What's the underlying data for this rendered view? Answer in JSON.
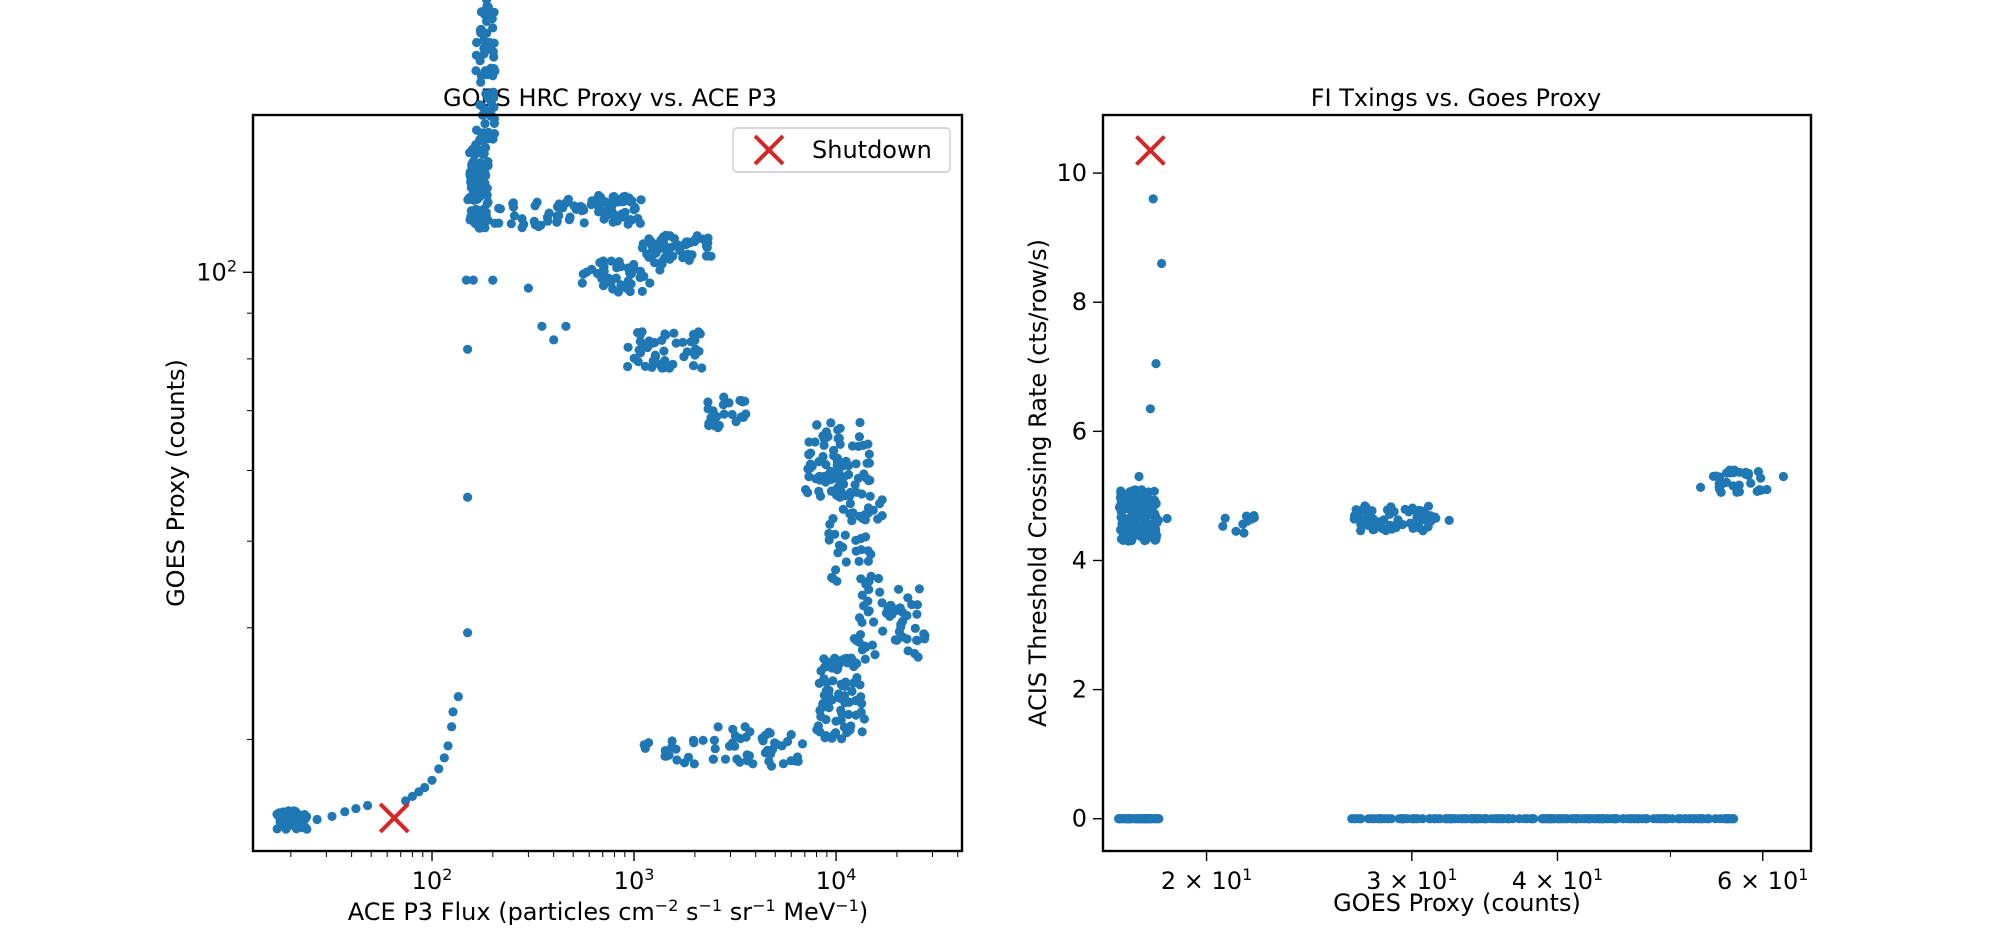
{
  "chart_data": [
    {
      "type": "scatter",
      "title": "GOES HRC Proxy vs. ACE P3",
      "xlabel": "ACE P3 Flux (particles cm",
      "xlabel_parts": {
        "p1": "ACE P3 Flux (particles cm",
        "e1": "−2",
        "p2": " s",
        "e2": "−1",
        "p3": " sr",
        "e3": "−1",
        "p4": " MeV",
        "e4": "−1",
        "p5": ")"
      },
      "ylabel": "GOES Proxy (counts)",
      "xscale": "log",
      "yscale": "log",
      "xlim": [
        13,
        42000
      ],
      "ylim": [
        22.5,
        150
      ],
      "xticks": [
        {
          "value": 100,
          "base": "10",
          "exp": "2"
        },
        {
          "value": 1000,
          "base": "10",
          "exp": "3"
        },
        {
          "value": 10000,
          "base": "10",
          "exp": "4"
        }
      ],
      "yticks": [
        {
          "value": 100,
          "base": "10",
          "exp": "2"
        }
      ],
      "legend": {
        "position": "top-right",
        "entries": [
          "Shutdown"
        ]
      },
      "series": [
        {
          "role": "data",
          "color": "#1f77b4",
          "clusters": [
            {
              "x": [
                17,
                24
              ],
              "y": [
                23.8,
                25.0
              ],
              "n": 60
            },
            {
              "x": [
                150,
                190
              ],
              "y": [
                112,
                140
              ],
              "n": 95
            },
            {
              "x": [
                165,
                205
              ],
              "y": [
                140,
                210
              ],
              "n": 80
            },
            {
              "x": [
                200,
                420
              ],
              "y": [
                112,
                120
              ],
              "n": 25
            },
            {
              "x": [
                420,
                1100
              ],
              "y": [
                113,
                122
              ],
              "n": 60
            },
            {
              "x": [
                1100,
                2500
              ],
              "y": [
                103,
                110
              ],
              "n": 55
            },
            {
              "x": [
                550,
                1400
              ],
              "y": [
                95,
                103
              ],
              "n": 40
            },
            {
              "x": [
                900,
                2200
              ],
              "y": [
                78,
                86
              ],
              "n": 45
            },
            {
              "x": [
                2300,
                3600
              ],
              "y": [
                67,
                73
              ],
              "n": 25
            },
            {
              "x": [
                7000,
                15000
              ],
              "y": [
                56,
                68
              ],
              "n": 85
            },
            {
              "x": [
                9000,
                17000
              ],
              "y": [
                45,
                56
              ],
              "n": 45
            },
            {
              "x": [
                12000,
                28000
              ],
              "y": [
                37,
                45
              ],
              "n": 55
            },
            {
              "x": [
                8000,
                14000
              ],
              "y": [
                30,
                37
              ],
              "n": 80
            },
            {
              "x": [
                2500,
                7000
              ],
              "y": [
                28,
                31
              ],
              "n": 40
            },
            {
              "x": [
                1000,
                2500
              ],
              "y": [
                28,
                30
              ],
              "n": 20
            }
          ],
          "points": [
            [
              27,
              24.4
            ],
            [
              32,
              24.6
            ],
            [
              37,
              24.9
            ],
            [
              42,
              25.1
            ],
            [
              48,
              25.3
            ],
            [
              74,
              25.6
            ],
            [
              80,
              25.9
            ],
            [
              86,
              26.2
            ],
            [
              92,
              26.5
            ],
            [
              100,
              27.0
            ],
            [
              108,
              27.8
            ],
            [
              115,
              28.6
            ],
            [
              120,
              29.5
            ],
            [
              125,
              31.0
            ],
            [
              127,
              32.2
            ],
            [
              135,
              33.5
            ],
            [
              150,
              39.5
            ],
            [
              150,
              56
            ],
            [
              150,
              82
            ],
            [
              148,
              98
            ],
            [
              160,
              98
            ],
            [
              200,
              98
            ],
            [
              300,
              96
            ],
            [
              350,
              87
            ],
            [
              400,
              84
            ],
            [
              460,
              87
            ]
          ]
        },
        {
          "role": "shutdown",
          "name": "Shutdown",
          "color": "#d62728",
          "points": [
            [
              65,
              24.5
            ]
          ]
        }
      ]
    },
    {
      "type": "scatter",
      "title": "FI Txings vs. Goes Proxy",
      "xlabel": "GOES Proxy (counts)",
      "ylabel": "ACIS Threshold Crossing Rate (cts/row/s)",
      "xscale": "log",
      "yscale": "linear",
      "xlim": [
        16.3,
        66
      ],
      "ylim": [
        -0.5,
        10.9
      ],
      "xticks": [
        {
          "value": 20,
          "base": "2 × 10",
          "exp": "1"
        },
        {
          "value": 30,
          "base": "3 × 10",
          "exp": "1"
        },
        {
          "value": 40,
          "base": "4 × 10",
          "exp": "1"
        },
        {
          "value": 60,
          "base": "6 × 10",
          "exp": "1"
        }
      ],
      "yticks": [
        "0",
        "2",
        "4",
        "6",
        "8",
        "10"
      ],
      "series": [
        {
          "role": "data",
          "color": "#1f77b4",
          "clusters": [
            {
              "x": [
                16.8,
                18.2
              ],
              "y": [
                4.3,
                5.1
              ],
              "n": 150
            },
            {
              "x": [
                16.8,
                18.2
              ],
              "y": [
                0,
                0
              ],
              "n": 60
            },
            {
              "x": [
                20.5,
                22.5
              ],
              "y": [
                4.4,
                4.7
              ],
              "n": 10
            },
            {
              "x": [
                26.5,
                31.5
              ],
              "y": [
                4.45,
                4.85
              ],
              "n": 70
            },
            {
              "x": [
                26.5,
                57
              ],
              "y": [
                0,
                0
              ],
              "n": 200
            },
            {
              "x": [
                53,
                60
              ],
              "y": [
                5.05,
                5.4
              ],
              "n": 30
            }
          ],
          "points": [
            [
              18.0,
              9.6
            ],
            [
              18.3,
              8.6
            ],
            [
              18.1,
              7.05
            ],
            [
              17.9,
              6.35
            ],
            [
              17.5,
              5.3
            ],
            [
              18.5,
              4.65
            ],
            [
              32.3,
              4.62
            ],
            [
              62.5,
              5.3
            ],
            [
              60.5,
              5.1
            ],
            [
              26.8,
              0
            ]
          ]
        },
        {
          "role": "shutdown",
          "name": "Shutdown",
          "color": "#d62728",
          "points": [
            [
              17.9,
              10.35
            ]
          ]
        }
      ]
    }
  ]
}
